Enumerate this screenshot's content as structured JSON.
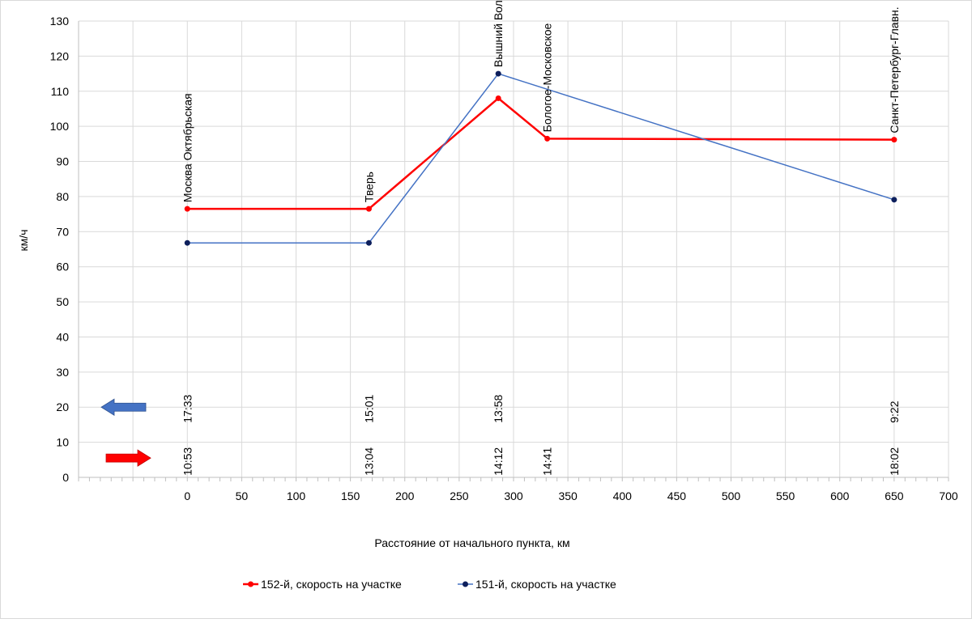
{
  "chart_data": {
    "type": "line",
    "title": "",
    "xlabel": "Расстояние от начального пункта, км",
    "ylabel": "км/ч",
    "xlim": [
      -100,
      700
    ],
    "ylim": [
      0,
      130
    ],
    "x_ticks": [
      0,
      50,
      100,
      150,
      200,
      250,
      300,
      350,
      400,
      450,
      500,
      550,
      600,
      650,
      700
    ],
    "y_ticks": [
      0,
      10,
      20,
      30,
      40,
      50,
      60,
      70,
      80,
      90,
      100,
      110,
      120,
      130
    ],
    "grid": true,
    "legend_position": "bottom",
    "series": [
      {
        "name": "152-й, скорость на участке",
        "color": "#ff0000",
        "marker_color": "#ff0000",
        "x": [
          0,
          167,
          286,
          331,
          650
        ],
        "y": [
          76.5,
          76.5,
          108,
          96.5,
          96.2
        ]
      },
      {
        "name": "151-й, скорость на участке",
        "color": "#4472c4",
        "marker_color": "#0d1f5c",
        "x": [
          0,
          167,
          286,
          650
        ],
        "y": [
          66.8,
          66.8,
          115,
          79.1
        ]
      }
    ],
    "stations": [
      {
        "x": 0,
        "y": 76.5,
        "label": "Москва Октябрьская"
      },
      {
        "x": 167,
        "y": 76.5,
        "label": "Тверь"
      },
      {
        "x": 286,
        "y": 115,
        "label": "Вышний Волочёк"
      },
      {
        "x": 331,
        "y": 96.5,
        "label": "Бологое-Московское"
      },
      {
        "x": 650,
        "y": 96.2,
        "label": "Санкт-Петербург-Главн."
      }
    ],
    "times_151": [
      {
        "x": 0,
        "label": "17:33"
      },
      {
        "x": 167,
        "label": "15:01"
      },
      {
        "x": 286,
        "label": "13:58"
      },
      {
        "x": 650,
        "label": "9:22"
      }
    ],
    "times_152": [
      {
        "x": 0,
        "label": "10:53"
      },
      {
        "x": 167,
        "label": "13:04"
      },
      {
        "x": 286,
        "label": "14:12"
      },
      {
        "x": 331,
        "label": "14:41"
      },
      {
        "x": 650,
        "label": "18:02"
      }
    ],
    "direction_arrows": [
      {
        "direction": "left",
        "color": "#4472c4",
        "y": 20
      },
      {
        "direction": "right",
        "color": "#ff0000",
        "y": 5.5
      }
    ]
  }
}
